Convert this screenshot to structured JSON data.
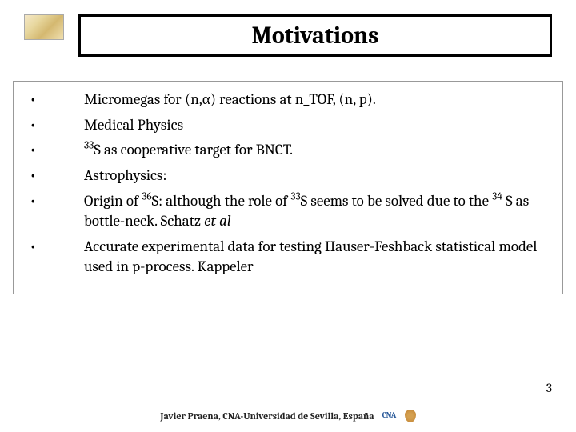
{
  "title": "Motivations",
  "bullets": [
    {
      "html": " Micromegas for (n,α) reactions at n_TOF, (n, p)."
    },
    {
      "html": " Medical Physics"
    },
    {
      "html": "<span class='superscript'>33</span>S as cooperative target for BNCT."
    },
    {
      "html": " Astrophysics:"
    },
    {
      "html": "Origin of <span class='superscript'>36</span>S: although the role of <span class='superscript'>33</span>S seems to be solved due to the <span class='superscript'>34</span> S as bottle-neck. Schatz <span class='italic'>et al</span>"
    },
    {
      "html": "Accurate experimental data for testing Hauser-Feshback statistical model used in p-process. Kappeler"
    }
  ],
  "page_number": "3",
  "footer_text": "Javier Praena, CNA-Universidad de Sevilla, España",
  "footer_badge": "CNA"
}
